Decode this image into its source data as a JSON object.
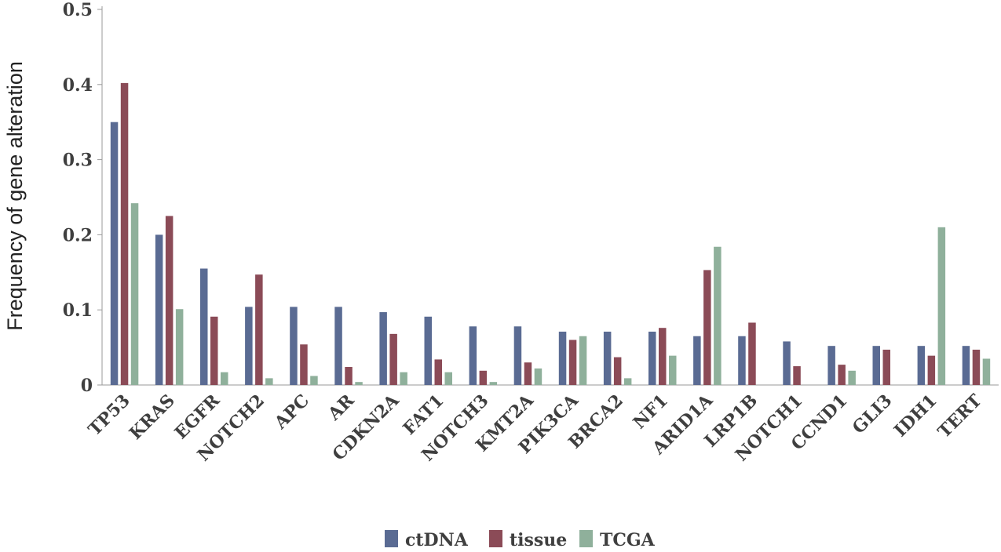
{
  "chart_data": {
    "type": "bar",
    "title": "",
    "xlabel": "",
    "ylabel": "Frequency of gene alteration",
    "ylim": [
      0,
      0.5
    ],
    "yticks": [
      0,
      0.1,
      0.2,
      0.3,
      0.4,
      0.5
    ],
    "ytick_labels": [
      "0",
      "0.1",
      "0.2",
      "0.3",
      "0.4",
      "0.5"
    ],
    "grid": false,
    "legend_position": "bottom-center",
    "categories": [
      "TP53",
      "KRAS",
      "EGFR",
      "NOTCH2",
      "APC",
      "AR",
      "CDKN2A",
      "FAT1",
      "NOTCH3",
      "KMT2A",
      "PIK3CA",
      "BRCA2",
      "NF1",
      "ARID1A",
      "LRP1B",
      "NOTCH1",
      "CCND1",
      "GLI3",
      "IDH1",
      "TERT"
    ],
    "series": [
      {
        "name": "ctDNA",
        "color": "#5a6b93",
        "values": [
          0.35,
          0.2,
          0.155,
          0.104,
          0.104,
          0.104,
          0.097,
          0.091,
          0.078,
          0.078,
          0.071,
          0.071,
          0.071,
          0.065,
          0.065,
          0.058,
          0.052,
          0.052,
          0.052,
          0.052
        ]
      },
      {
        "name": "tissue",
        "color": "#8b4b57",
        "values": [
          0.402,
          0.225,
          0.091,
          0.147,
          0.054,
          0.024,
          0.068,
          0.034,
          0.019,
          0.03,
          0.06,
          0.037,
          0.076,
          0.153,
          0.083,
          0.025,
          0.027,
          0.047,
          0.039,
          0.047
        ]
      },
      {
        "name": "TCGA",
        "color": "#8fb09b",
        "values": [
          0.242,
          0.101,
          0.017,
          0.009,
          0.012,
          0.004,
          0.017,
          0.017,
          0.004,
          0.022,
          0.065,
          0.009,
          0.039,
          0.184,
          0,
          0,
          0.019,
          0,
          0.21,
          0.035
        ]
      }
    ]
  }
}
